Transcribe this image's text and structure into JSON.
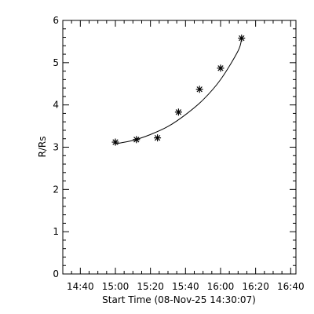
{
  "chart_data": {
    "type": "scatter",
    "xlabel": "Start Time (08-Nov-25 14:30:07)",
    "ylabel": "R/Rs",
    "xlim": [
      "14:30",
      "16:43"
    ],
    "ylim": [
      0,
      6
    ],
    "x_ticks": [
      "14:40",
      "15:00",
      "15:20",
      "15:40",
      "16:00",
      "16:20",
      "16:40"
    ],
    "y_ticks": [
      "0",
      "1",
      "2",
      "3",
      "4",
      "5",
      "6"
    ],
    "grid": false,
    "series": [
      {
        "marker": "asterisk",
        "x": [
          "15:00",
          "15:12",
          "15:24",
          "15:36",
          "15:48",
          "16:00",
          "16:12"
        ],
        "y": [
          3.12,
          3.18,
          3.22,
          3.83,
          4.37,
          4.87,
          5.58
        ]
      }
    ],
    "fit": {
      "type": "curve",
      "x": [
        "15:00",
        "15:10",
        "15:20",
        "15:30",
        "15:40",
        "15:50",
        "16:00",
        "16:10",
        "16:12"
      ],
      "y": [
        3.08,
        3.16,
        3.3,
        3.49,
        3.77,
        4.12,
        4.6,
        5.28,
        5.58
      ]
    },
    "colors": {
      "marks": "#000000",
      "background": "#ffffff"
    }
  }
}
